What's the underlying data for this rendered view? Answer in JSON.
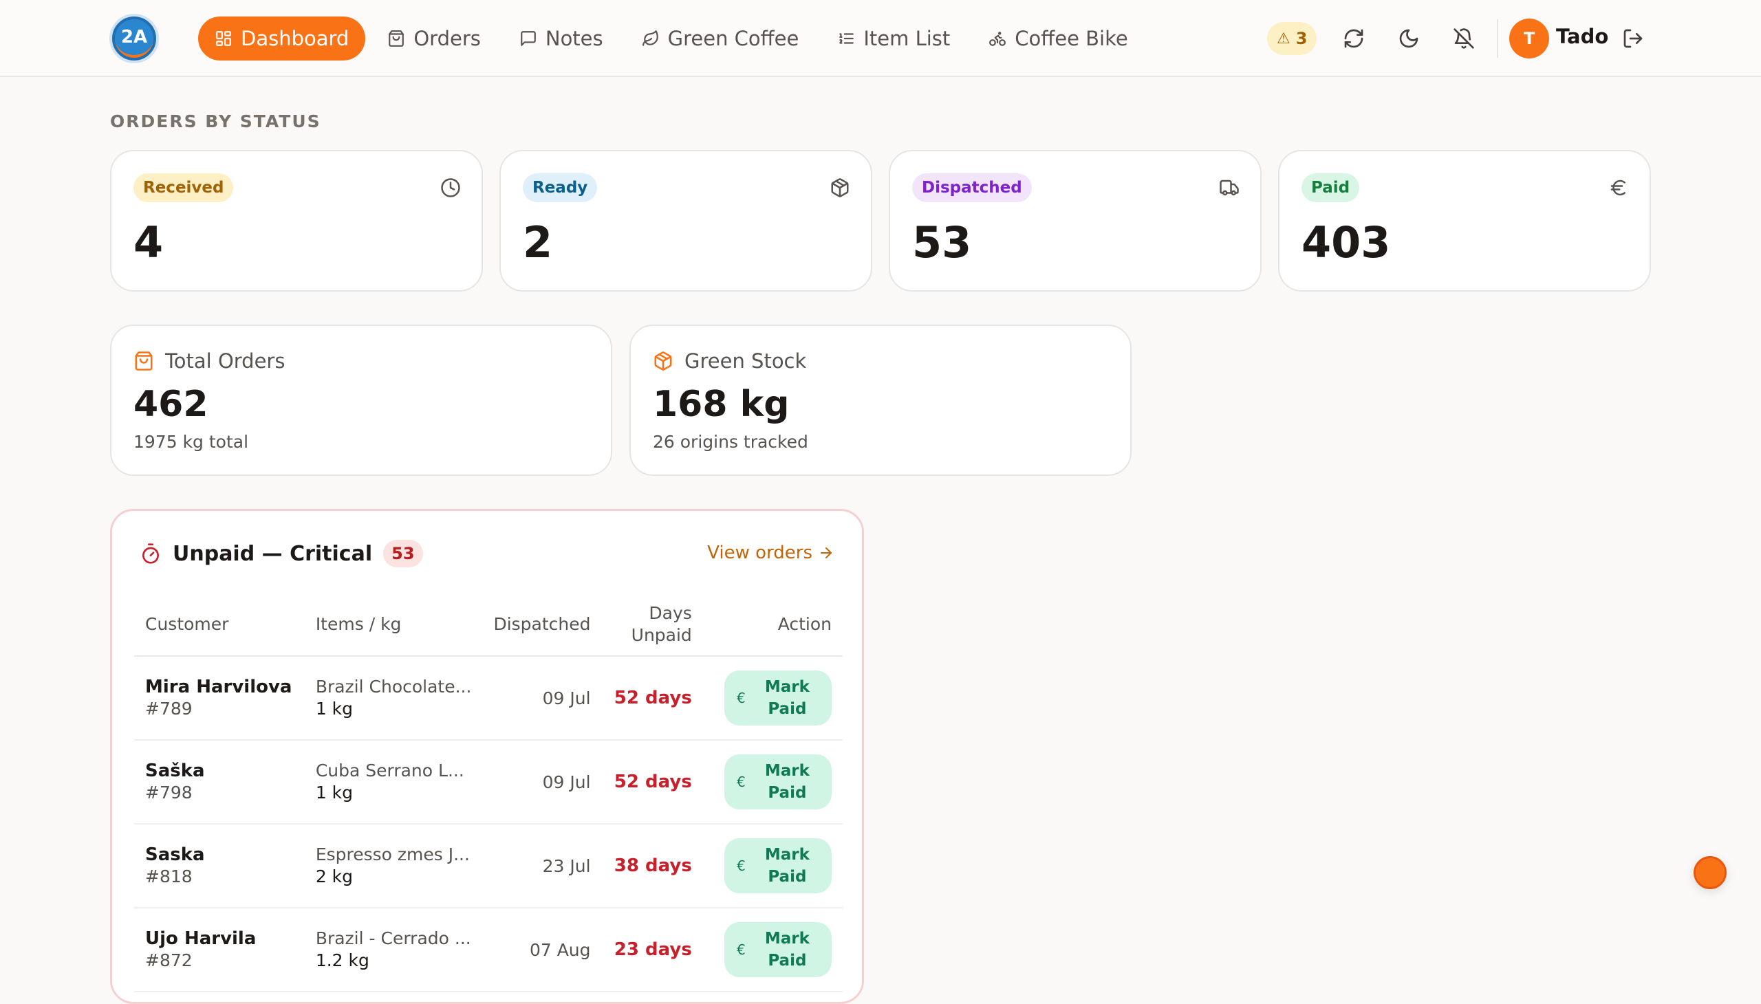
{
  "brand": {
    "logo_text": "2A",
    "logo_arc_text": "roastery"
  },
  "nav": {
    "items": [
      {
        "label": "Dashboard",
        "icon": "dashboard-icon",
        "active": true
      },
      {
        "label": "Orders",
        "icon": "shopping-bag-icon"
      },
      {
        "label": "Notes",
        "icon": "message-square-icon"
      },
      {
        "label": "Green Coffee",
        "icon": "leaf-icon"
      },
      {
        "label": "Item List",
        "icon": "list-icon"
      },
      {
        "label": "Coffee Bike",
        "icon": "bike-icon"
      }
    ]
  },
  "toolbar": {
    "alert_symbol": "⚠",
    "alert_count": "3",
    "user_initial": "T",
    "user_name": "Tado"
  },
  "orders_by_status": {
    "title": "ORDERS BY STATUS",
    "cards": [
      {
        "label": "Received",
        "count": "4",
        "icon": "clock-icon",
        "pill_bg": "#fdf0c4",
        "pill_color": "#a16207"
      },
      {
        "label": "Ready",
        "count": "2",
        "icon": "package-icon",
        "pill_bg": "#dff0fb",
        "pill_color": "#0b5f8a"
      },
      {
        "label": "Dispatched",
        "count": "53",
        "icon": "truck-icon",
        "pill_bg": "#f1e4fb",
        "pill_color": "#7e22ce"
      },
      {
        "label": "Paid",
        "count": "403",
        "icon": "euro-icon",
        "pill_bg": "#d8f5e6",
        "pill_color": "#15803d"
      }
    ]
  },
  "metrics": {
    "total_orders": {
      "label": "Total Orders",
      "value": "462",
      "sub": "1975 kg total"
    },
    "green_stock": {
      "label": "Green Stock",
      "value": "168 kg",
      "sub": "26 origins tracked"
    }
  },
  "unpaid": {
    "title": "Unpaid — Critical",
    "count": "53",
    "view_orders": "View orders",
    "columns": {
      "customer": "Customer",
      "items": "Items / kg",
      "dispatched": "Dispatched",
      "days_line1": "Days",
      "days_line2": "Unpaid",
      "action": "Action"
    },
    "rows": [
      {
        "name": "Mira Harvilova",
        "id": "#789",
        "item": "Brazil Chocolate...",
        "kg": "1 kg",
        "dispatched": "09 Jul",
        "days": "52 days"
      },
      {
        "name": "Saška",
        "id": "#798",
        "item": "Cuba Serrano L...",
        "kg": "1 kg",
        "dispatched": "09 Jul",
        "days": "52 days"
      },
      {
        "name": "Saska",
        "id": "#818",
        "item": "Espresso zmes J...",
        "kg": "2 kg",
        "dispatched": "23 Jul",
        "days": "38 days"
      },
      {
        "name": "Ujo Harvila",
        "id": "#872",
        "item": "Brazil - Cerrado ...",
        "kg": "1.2 kg",
        "dispatched": "07 Aug",
        "days": "23 days"
      }
    ],
    "mark_paid_line1": "Mark",
    "mark_paid_line2": "Paid",
    "euro_symbol": "€"
  },
  "colors": {
    "accent": "#f97316",
    "danger": "#c8202a",
    "success_bg": "#d1f5e4",
    "success_fg": "#0f7a55"
  }
}
